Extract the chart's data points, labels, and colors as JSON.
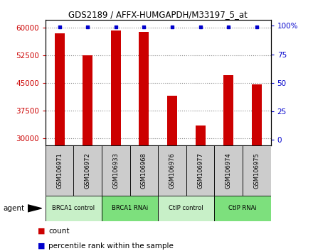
{
  "title": "GDS2189 / AFFX-HUMGAPDH/M33197_5_at",
  "samples": [
    "GSM106971",
    "GSM106972",
    "GSM106933",
    "GSM106968",
    "GSM106976",
    "GSM106977",
    "GSM106974",
    "GSM106975"
  ],
  "counts": [
    58500,
    52500,
    59200,
    58800,
    41500,
    33500,
    47000,
    44500
  ],
  "percentiles": [
    99,
    99,
    99,
    99,
    99,
    99,
    99,
    99
  ],
  "groups": [
    {
      "label": "BRCA1 control",
      "indices": [
        0,
        1
      ],
      "color": "#c8f0c8"
    },
    {
      "label": "BRCA1 RNAi",
      "indices": [
        2,
        3
      ],
      "color": "#7de07d"
    },
    {
      "label": "CtIP control",
      "indices": [
        4,
        5
      ],
      "color": "#c8f0c8"
    },
    {
      "label": "CtIP RNAi",
      "indices": [
        6,
        7
      ],
      "color": "#7de07d"
    }
  ],
  "bar_color": "#cc0000",
  "dot_color": "#0000cc",
  "ylim_left": [
    28000,
    62000
  ],
  "ylim_right": [
    -5,
    105
  ],
  "yticks_left": [
    30000,
    37500,
    45000,
    52500,
    60000
  ],
  "yticks_right": [
    0,
    25,
    50,
    75,
    100
  ],
  "ylabel_left_color": "#cc0000",
  "ylabel_right_color": "#0000cc",
  "grid_color": "#888888",
  "sample_box_color": "#cccccc",
  "agent_label": "agent",
  "legend_count_label": "count",
  "legend_percentile_label": "percentile rank within the sample",
  "bar_width": 0.35
}
